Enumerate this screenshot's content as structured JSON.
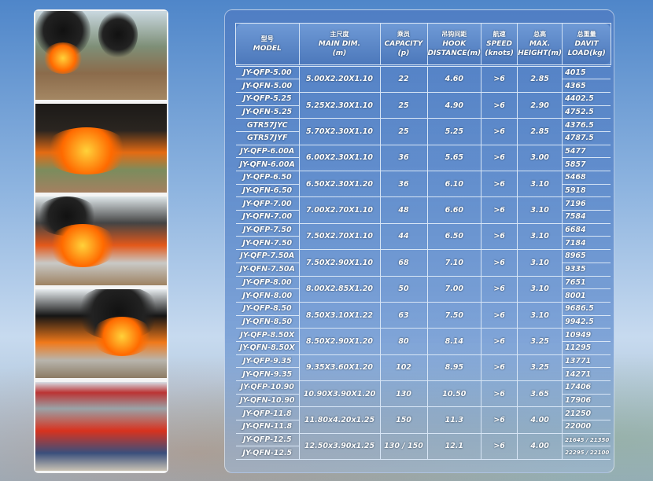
{
  "headers": [
    {
      "zh": "型号",
      "en": "MODEL",
      "unit": ""
    },
    {
      "zh": "主尺度",
      "en": "MAIN DIM.",
      "unit": "(m)"
    },
    {
      "zh": "乘员",
      "en": "CAPACITY",
      "unit": "(p)"
    },
    {
      "zh": "吊钩间距",
      "en": "HOOK",
      "unit": "DISTANCE(m)"
    },
    {
      "zh": "航速",
      "en": "SPEED",
      "unit": "(knots)"
    },
    {
      "zh": "总高",
      "en": "MAX.",
      "unit": "HEIGHT(m)"
    },
    {
      "zh": "总重量",
      "en": "DAVIT",
      "unit": "LOAD(kg)"
    }
  ],
  "groups": [
    {
      "models": [
        "JY-QFP-5.00",
        "JY-QFN-5.00"
      ],
      "dim": "5.00X2.20X1.10",
      "capacity": "22",
      "hook": "4.60",
      "speed": ">6",
      "height": "2.85",
      "davit": [
        "4015",
        "4365"
      ]
    },
    {
      "models": [
        "JY-QFP-5.25",
        "JY-QFN-5.25"
      ],
      "dim": "5.25X2.30X1.10",
      "capacity": "25",
      "hook": "4.90",
      "speed": ">6",
      "height": "2.90",
      "davit": [
        "4402.5",
        "4752.5"
      ]
    },
    {
      "models": [
        "GTR57JYC",
        "GTR57JYF"
      ],
      "dim": "5.70X2.30X1.10",
      "capacity": "25",
      "hook": "5.25",
      "speed": ">6",
      "height": "2.85",
      "davit": [
        "4376.5",
        "4787.5"
      ]
    },
    {
      "models": [
        "JY-QFP-6.00A",
        "JY-QFN-6.00A"
      ],
      "dim": "6.00X2.30X1.10",
      "capacity": "36",
      "hook": "5.65",
      "speed": ">6",
      "height": "3.00",
      "davit": [
        "5477",
        "5857"
      ]
    },
    {
      "models": [
        "JY-QFP-6.50",
        "JY-QFN-6.50"
      ],
      "dim": "6.50X2.30X1.20",
      "capacity": "36",
      "hook": "6.10",
      "speed": ">6",
      "height": "3.10",
      "davit": [
        "5468",
        "5918"
      ]
    },
    {
      "models": [
        "JY-QFP-7.00",
        "JY-QFN-7.00"
      ],
      "dim": "7.00X2.70X1.10",
      "capacity": "48",
      "hook": "6.60",
      "speed": ">6",
      "height": "3.10",
      "davit": [
        "7196",
        "7584"
      ]
    },
    {
      "models": [
        "JY-QFP-7.50",
        "JY-QFN-7.50"
      ],
      "dim": "7.50X2.70X1.10",
      "capacity": "44",
      "hook": "6.50",
      "speed": ">6",
      "height": "3.10",
      "davit": [
        "6684",
        "7184"
      ]
    },
    {
      "models": [
        "JY-QFP-7.50A",
        "JY-QFN-7.50A"
      ],
      "dim": "7.50X2.90X1.10",
      "capacity": "68",
      "hook": "7.10",
      "speed": ">6",
      "height": "3.10",
      "davit": [
        "8965",
        "9335"
      ]
    },
    {
      "models": [
        "JY-QFP-8.00",
        "JY-QFN-8.00"
      ],
      "dim": "8.00X2.85X1.20",
      "capacity": "50",
      "hook": "7.00",
      "speed": ">6",
      "height": "3.10",
      "davit": [
        "7651",
        "8001"
      ]
    },
    {
      "models": [
        "JY-QFP-8.50",
        "JY-QFN-8.50"
      ],
      "dim": "8.50X3.10X1.22",
      "capacity": "63",
      "hook": "7.50",
      "speed": ">6",
      "height": "3.10",
      "davit": [
        "9686.5",
        "9942.5"
      ]
    },
    {
      "models": [
        "JY-QFP-8.50X",
        "JY-QFN-8.50X"
      ],
      "dim": "8.50X2.90X1.20",
      "capacity": "80",
      "hook": "8.14",
      "speed": ">6",
      "height": "3.25",
      "davit": [
        "10949",
        "11295"
      ]
    },
    {
      "models": [
        "JY-QFP-9.35",
        "JY-QFN-9.35"
      ],
      "dim": "9.35X3.60X1.20",
      "capacity": "102",
      "hook": "8.95",
      "speed": ">6",
      "height": "3.25",
      "davit": [
        "13771",
        "14271"
      ]
    },
    {
      "models": [
        "JY-QFP-10.90",
        "JY-QFN-10.90"
      ],
      "dim": "10.90X3.90X1.20",
      "capacity": "130",
      "hook": "10.50",
      "speed": ">6",
      "height": "3.65",
      "davit": [
        "17406",
        "17906"
      ]
    },
    {
      "models": [
        "JY-QFP-11.8",
        "JY-QFN-11.8"
      ],
      "dim": "11.80x4.20x1.25",
      "capacity": "150",
      "hook": "11.3",
      "speed": ">6",
      "height": "4.00",
      "davit": [
        "21250",
        "22000"
      ]
    },
    {
      "models": [
        "JY-QFP-12.5",
        "JY-QFN-12.5"
      ],
      "dim": "12.50x3.90x1.25",
      "capacity": "130 / 150",
      "hook": "12.1",
      "speed": ">6",
      "height": "4.00",
      "davit": [
        "21645 / 21350",
        "22295 / 22100"
      ]
    }
  ]
}
